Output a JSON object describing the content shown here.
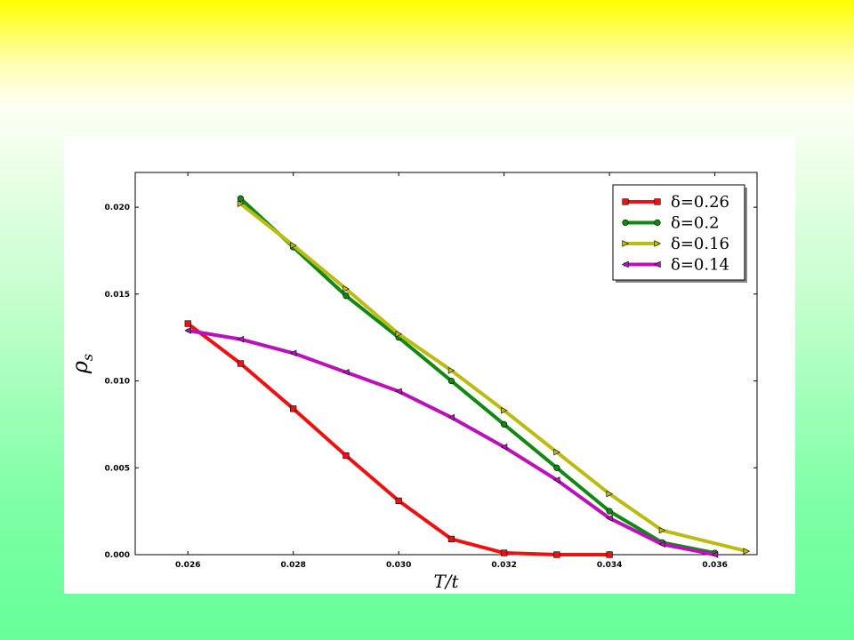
{
  "colors": {
    "background_top": "#ffff00",
    "background_bottom": "#66ff99",
    "panel": "#ffffff"
  },
  "chart_data": {
    "type": "line",
    "xlabel": "T/t",
    "ylabel": "ρ_s",
    "xlim": [
      0.025,
      0.0368
    ],
    "ylim": [
      0.0,
      0.022
    ],
    "xticks": [
      "0.026",
      "0.028",
      "0.030",
      "0.032",
      "0.034",
      "0.036"
    ],
    "yticks": [
      "0.000",
      "0.005",
      "0.010",
      "0.015",
      "0.020"
    ],
    "grid": false,
    "legend_position": "top-right",
    "series": [
      {
        "name": "δ=0.26",
        "color": "#ee1111",
        "marker": "square",
        "x": [
          0.026,
          0.027,
          0.028,
          0.029,
          0.03,
          0.031,
          0.032,
          0.033,
          0.034
        ],
        "y": [
          0.0133,
          0.011,
          0.0084,
          0.0057,
          0.0031,
          0.0009,
          0.0001,
          0.0,
          0.0
        ]
      },
      {
        "name": "δ=0.2",
        "color": "#118811",
        "marker": "circle",
        "x": [
          0.027,
          0.028,
          0.029,
          0.03,
          0.031,
          0.032,
          0.033,
          0.034,
          0.035,
          0.036
        ],
        "y": [
          0.0205,
          0.0177,
          0.0149,
          0.0125,
          0.01,
          0.0075,
          0.005,
          0.0025,
          0.0007,
          0.0001
        ]
      },
      {
        "name": "δ=0.16",
        "color": "#bbbb11",
        "marker": "triangle-right",
        "x": [
          0.027,
          0.028,
          0.029,
          0.03,
          0.031,
          0.032,
          0.033,
          0.034,
          0.035,
          0.0366
        ],
        "y": [
          0.0202,
          0.0178,
          0.0153,
          0.0127,
          0.0106,
          0.0083,
          0.0059,
          0.0035,
          0.0014,
          0.0002
        ]
      },
      {
        "name": "δ=0.14",
        "color": "#bb11bb",
        "marker": "triangle-left",
        "x": [
          0.026,
          0.027,
          0.028,
          0.029,
          0.03,
          0.031,
          0.032,
          0.033,
          0.034,
          0.035,
          0.036
        ],
        "y": [
          0.0129,
          0.0124,
          0.0116,
          0.0105,
          0.0094,
          0.0079,
          0.0062,
          0.0043,
          0.0021,
          0.0006,
          0.0
        ]
      }
    ]
  }
}
